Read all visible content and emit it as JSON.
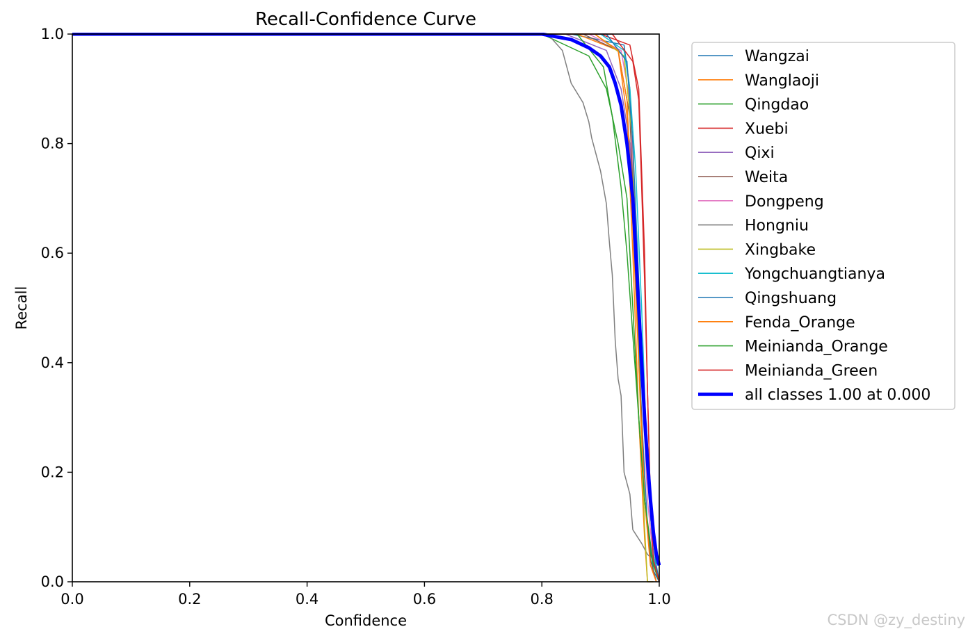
{
  "watermark": "CSDN @zy_destiny",
  "chart_data": {
    "type": "line",
    "title": "Recall-Confidence Curve",
    "xlabel": "Confidence",
    "ylabel": "Recall",
    "xlim": [
      0,
      1
    ],
    "ylim": [
      0,
      1
    ],
    "xticks": [
      "0.0",
      "0.2",
      "0.4",
      "0.6",
      "0.8",
      "1.0"
    ],
    "yticks": [
      "0.0",
      "0.2",
      "0.4",
      "0.6",
      "0.8",
      "1.0"
    ],
    "grid": false,
    "legend_position": "outside-right",
    "series": [
      {
        "name": "Wangzai",
        "color": "#1f77b4",
        "width": 1.5,
        "x": [
          0,
          0.85,
          0.94,
          0.95,
          0.96,
          0.97,
          0.98,
          0.99,
          1.0
        ],
        "y": [
          1,
          1,
          0.98,
          0.9,
          0.6,
          0.3,
          0.1,
          0.02,
          0
        ]
      },
      {
        "name": "Wanglaoji",
        "color": "#ff7f0e",
        "width": 1.5,
        "x": [
          0,
          0.86,
          0.93,
          0.945,
          0.955,
          0.965,
          0.975,
          0.98,
          0.99
        ],
        "y": [
          1,
          1,
          0.97,
          0.85,
          0.6,
          0.3,
          0.08,
          0,
          0
        ]
      },
      {
        "name": "Qingdao",
        "color": "#2ca02c",
        "width": 1.5,
        "x": [
          0,
          0.8,
          0.88,
          0.91,
          0.93,
          0.945,
          0.955,
          0.965,
          0.975,
          0.985,
          1.0
        ],
        "y": [
          1,
          1,
          0.96,
          0.9,
          0.8,
          0.7,
          0.5,
          0.3,
          0.15,
          0.05,
          0
        ]
      },
      {
        "name": "Xuebi",
        "color": "#d62728",
        "width": 1.5,
        "x": [
          0,
          0.9,
          0.95,
          0.965,
          0.97,
          0.975,
          0.98,
          0.985,
          0.99,
          1.0
        ],
        "y": [
          1,
          1,
          0.98,
          0.9,
          0.75,
          0.6,
          0.35,
          0.15,
          0.04,
          0
        ]
      },
      {
        "name": "Qixi",
        "color": "#9467bd",
        "width": 1.5,
        "x": [
          0,
          0.84,
          0.91,
          0.935,
          0.95,
          0.96,
          0.97,
          0.98,
          0.99,
          1.0
        ],
        "y": [
          1,
          1,
          0.97,
          0.9,
          0.8,
          0.6,
          0.4,
          0.2,
          0.05,
          0
        ]
      },
      {
        "name": "Weita",
        "color": "#8c564b",
        "width": 1.5,
        "x": [
          0,
          0.87,
          0.93,
          0.95,
          0.96,
          0.965,
          0.97,
          0.975,
          0.985,
          0.995
        ],
        "y": [
          1,
          1,
          0.97,
          0.85,
          0.6,
          0.4,
          0.3,
          0.15,
          0.04,
          0
        ]
      },
      {
        "name": "Dongpeng",
        "color": "#e377c2",
        "width": 1.5,
        "x": [
          0,
          0.88,
          0.935,
          0.95,
          0.96,
          0.97,
          0.98,
          0.99,
          1.0
        ],
        "y": [
          1,
          1,
          0.97,
          0.88,
          0.65,
          0.4,
          0.15,
          0.04,
          0
        ]
      },
      {
        "name": "Hongniu",
        "color": "#7f7f7f",
        "width": 1.5,
        "x": [
          0,
          0.81,
          0.835,
          0.85,
          0.87,
          0.88,
          0.885,
          0.9,
          0.905,
          0.91,
          0.915,
          0.92,
          0.925,
          0.93,
          0.935,
          0.94,
          0.95,
          0.955,
          0.97,
          0.98,
          1.0
        ],
        "y": [
          1,
          1,
          0.97,
          0.91,
          0.875,
          0.84,
          0.81,
          0.75,
          0.72,
          0.69,
          0.62,
          0.56,
          0.44,
          0.37,
          0.34,
          0.2,
          0.16,
          0.095,
          0.07,
          0.05,
          0.03
        ]
      },
      {
        "name": "Xingbake",
        "color": "#bcbd22",
        "width": 1.5,
        "x": [
          0,
          0.89,
          0.94,
          0.955,
          0.96,
          0.965,
          0.97,
          0.975,
          0.98,
          0.99
        ],
        "y": [
          1,
          1,
          0.96,
          0.8,
          0.6,
          0.4,
          0.25,
          0.1,
          0,
          0
        ]
      },
      {
        "name": "Yongchuangtianya",
        "color": "#17becf",
        "width": 1.5,
        "x": [
          0,
          0.9,
          0.94,
          0.95,
          0.96,
          0.97,
          0.975,
          0.98,
          0.99,
          1.0
        ],
        "y": [
          1,
          1,
          0.97,
          0.9,
          0.75,
          0.5,
          0.35,
          0.2,
          0.05,
          0
        ]
      },
      {
        "name": "Qingshuang",
        "color": "#1f77b4",
        "width": 1.5,
        "x": [
          0,
          0.91,
          0.945,
          0.955,
          0.965,
          0.975,
          0.985,
          0.995,
          1.0
        ],
        "y": [
          1,
          1,
          0.95,
          0.8,
          0.55,
          0.3,
          0.12,
          0.03,
          0
        ]
      },
      {
        "name": "Fenda_Orange",
        "color": "#ff7f0e",
        "width": 1.5,
        "x": [
          0,
          0.89,
          0.93,
          0.945,
          0.955,
          0.965,
          0.975,
          0.985,
          0.995
        ],
        "y": [
          1,
          1,
          0.97,
          0.88,
          0.65,
          0.4,
          0.15,
          0.03,
          0
        ]
      },
      {
        "name": "Meinianda_Orange",
        "color": "#2ca02c",
        "width": 1.5,
        "x": [
          0,
          0.86,
          0.905,
          0.92,
          0.935,
          0.945,
          0.955,
          0.965,
          0.975,
          0.99,
          1.0
        ],
        "y": [
          1,
          1,
          0.94,
          0.85,
          0.72,
          0.6,
          0.45,
          0.3,
          0.15,
          0.03,
          0
        ]
      },
      {
        "name": "Meinianda_Green",
        "color": "#d62728",
        "width": 1.5,
        "x": [
          0,
          0.92,
          0.955,
          0.965,
          0.97,
          0.975,
          0.98,
          0.985,
          0.99,
          1.0
        ],
        "y": [
          1,
          1,
          0.95,
          0.88,
          0.72,
          0.55,
          0.35,
          0.15,
          0.04,
          0
        ]
      },
      {
        "name": "all classes 1.00 at 0.000",
        "color": "#0000ff",
        "width": 5,
        "x": [
          0,
          0.8,
          0.85,
          0.88,
          0.9,
          0.915,
          0.925,
          0.935,
          0.945,
          0.955,
          0.96,
          0.965,
          0.97,
          0.975,
          0.98,
          0.985,
          0.99,
          0.995,
          1.0
        ],
        "y": [
          1,
          1,
          0.99,
          0.975,
          0.96,
          0.94,
          0.91,
          0.87,
          0.8,
          0.7,
          0.6,
          0.5,
          0.4,
          0.3,
          0.22,
          0.15,
          0.09,
          0.05,
          0.03
        ]
      }
    ]
  }
}
